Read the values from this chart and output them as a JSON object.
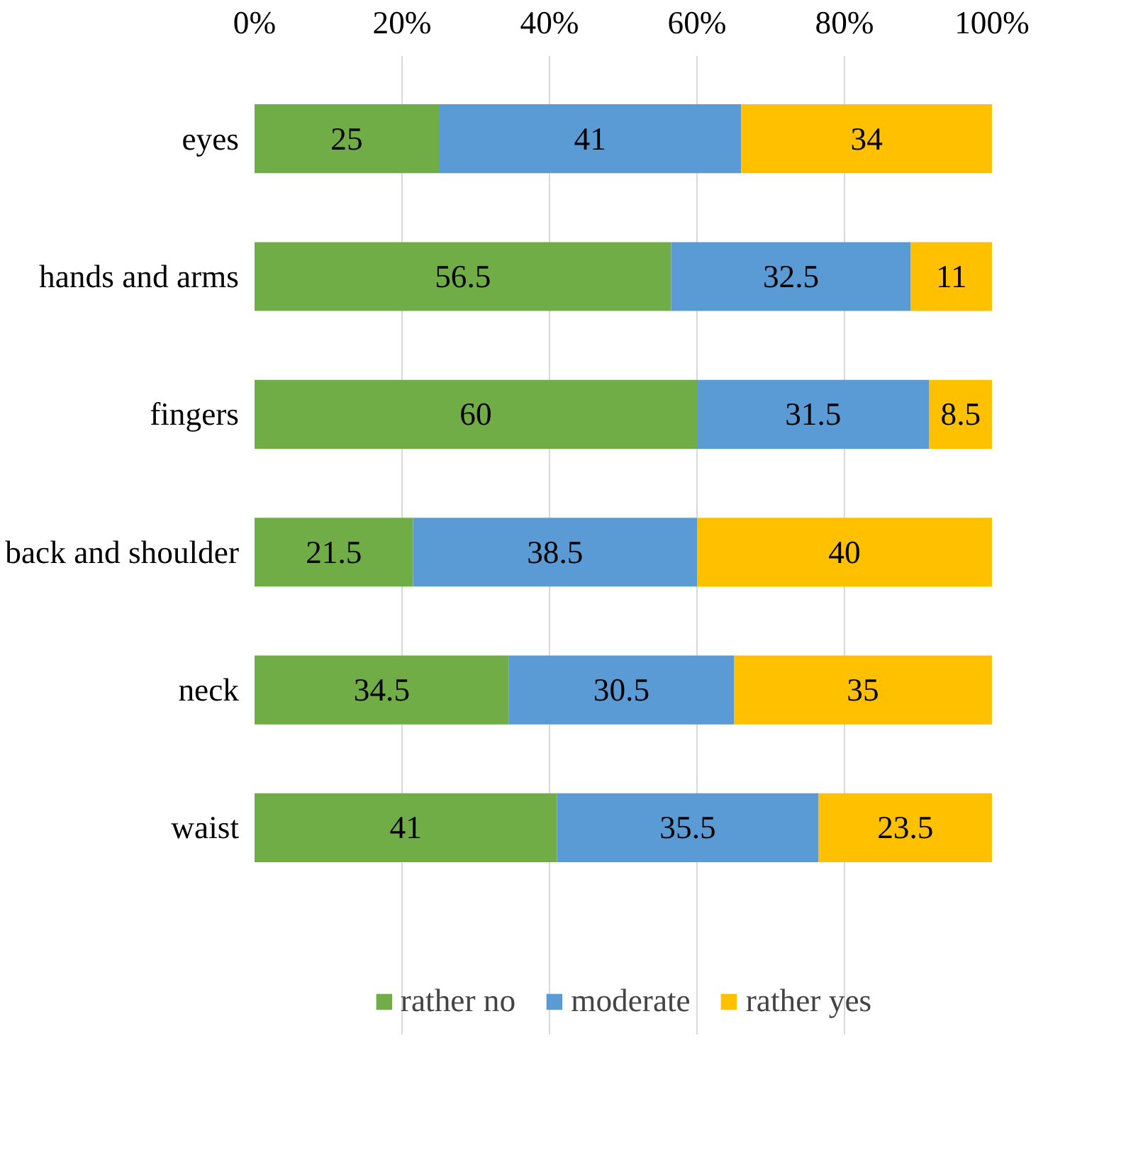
{
  "chart_data": {
    "type": "bar",
    "orientation": "horizontal",
    "stacked": true,
    "data_labels": true,
    "grid": "x",
    "legend": "bottom",
    "categories": [
      "eyes",
      "hands and arms",
      "fingers",
      "back and shoulder",
      "neck",
      "waist"
    ],
    "xlim": [
      0,
      100
    ],
    "xticks": [
      {
        "value": 0,
        "label": "0%"
      },
      {
        "value": 20,
        "label": "20%"
      },
      {
        "value": 40,
        "label": "40%"
      },
      {
        "value": 60,
        "label": "60%"
      },
      {
        "value": 80,
        "label": "80%"
      },
      {
        "value": 100,
        "label": "100%"
      }
    ],
    "series": [
      {
        "name": "rather no",
        "color": "#70ad47",
        "values": [
          25,
          56.5,
          60,
          21.5,
          34.5,
          41
        ]
      },
      {
        "name": "moderate",
        "color": "#5b9bd5",
        "values": [
          41,
          32.5,
          31.5,
          38.5,
          30.5,
          35.5
        ]
      },
      {
        "name": "rather yes",
        "color": "#ffc000",
        "values": [
          34,
          11,
          8.5,
          40,
          35,
          23.5
        ]
      }
    ]
  }
}
